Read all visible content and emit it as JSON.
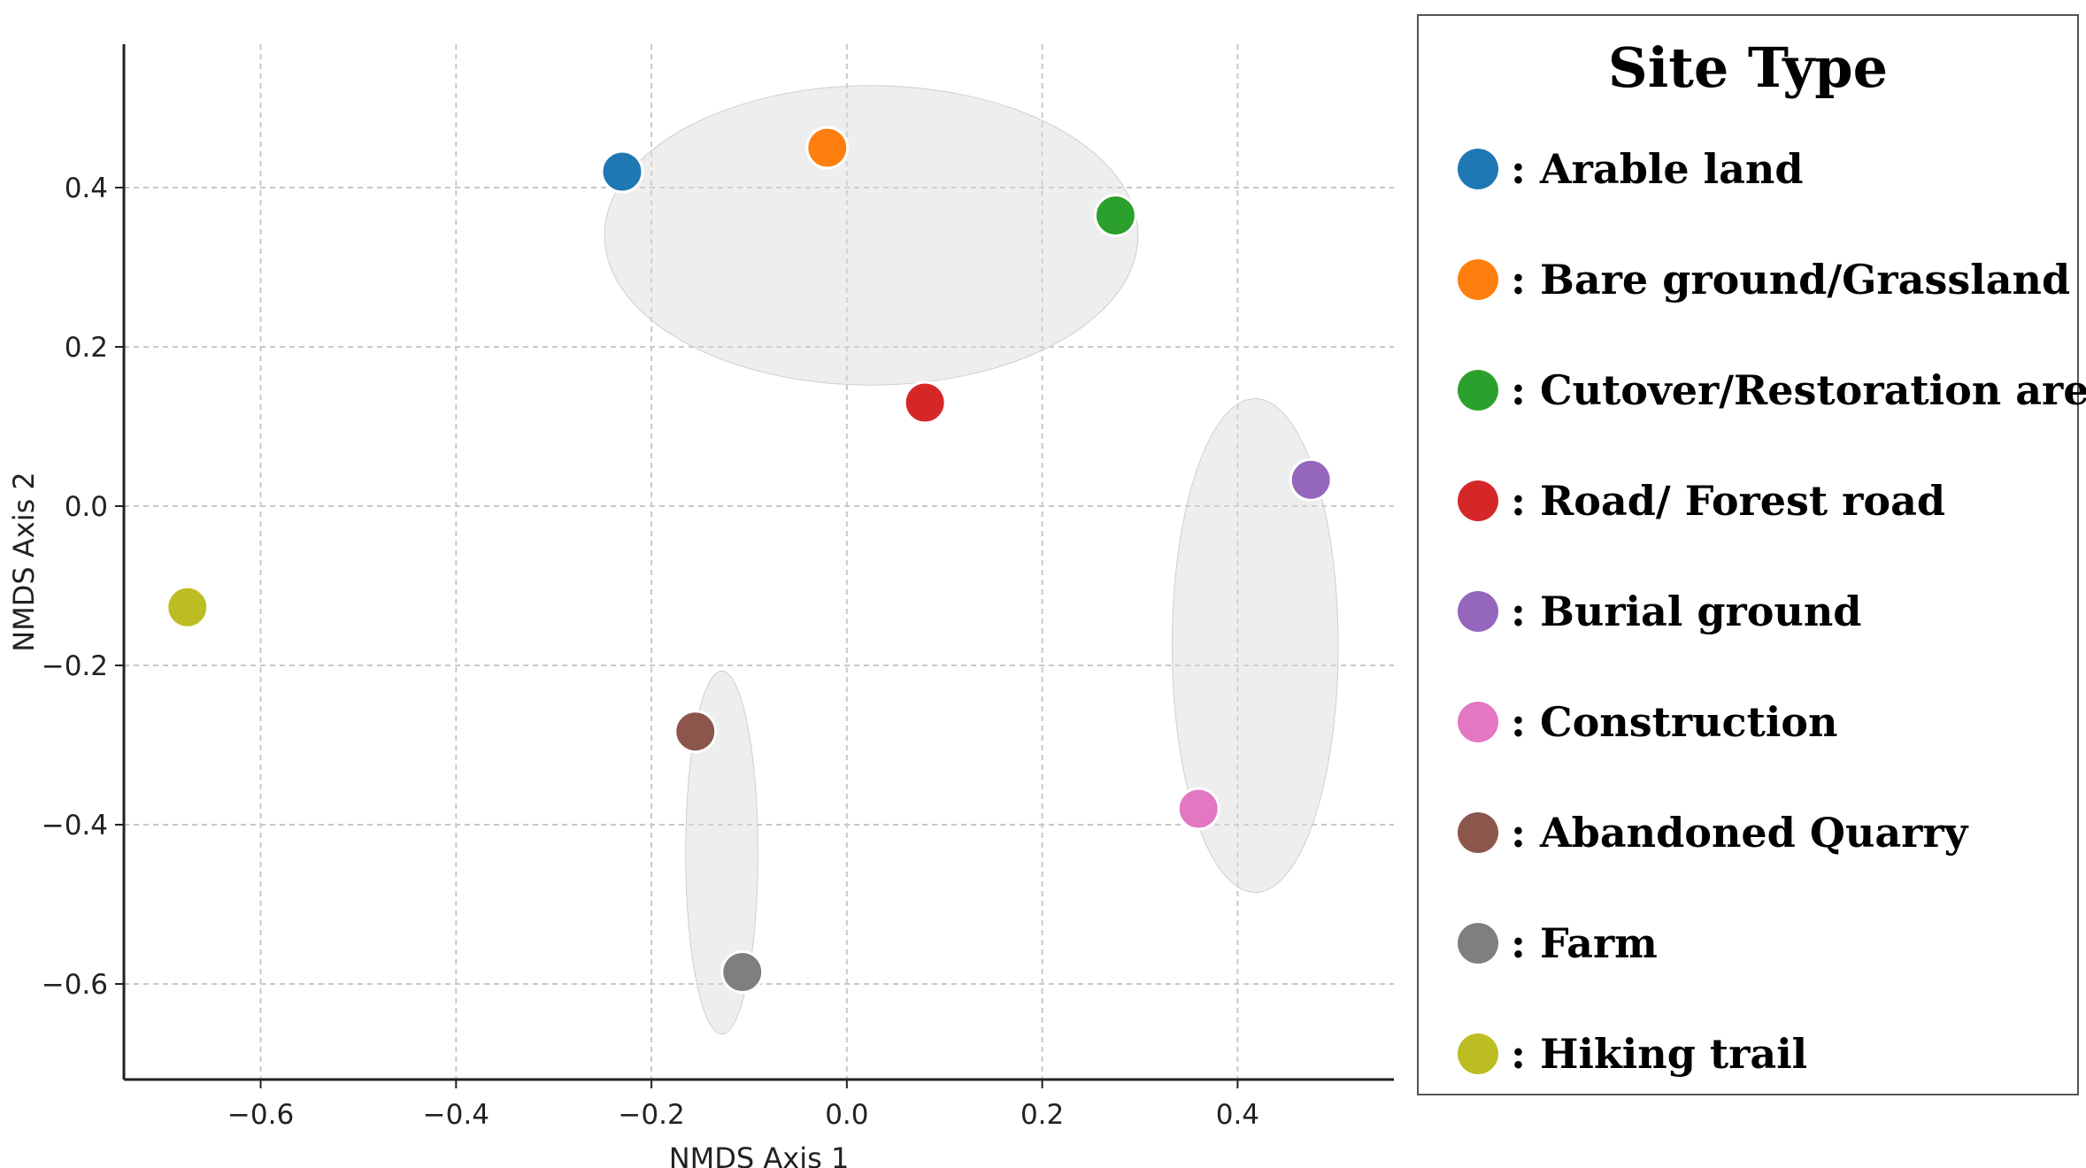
{
  "chart_data": {
    "type": "scatter",
    "title": "",
    "xlabel": "NMDS Axis 1",
    "ylabel": "NMDS Axis 2",
    "xlim": [
      -0.74,
      0.56
    ],
    "ylim": [
      -0.72,
      0.58
    ],
    "grid": true,
    "xticks": [
      -0.6,
      -0.4,
      -0.2,
      0.0,
      0.2,
      0.4
    ],
    "xtick_labels": [
      "−0.6",
      "−0.4",
      "−0.2",
      "0.0",
      "0.2",
      "0.4"
    ],
    "yticks": [
      -0.6,
      -0.4,
      -0.2,
      0.0,
      0.2,
      0.4
    ],
    "ytick_labels": [
      "−0.6",
      "−0.4",
      "−0.2",
      "0.0",
      "0.2",
      "0.4"
    ],
    "points": [
      {
        "name": "Arable land",
        "x": -0.23,
        "y": 0.42,
        "color": "#1f77b4"
      },
      {
        "name": "Bare ground/Grassland",
        "x": -0.02,
        "y": 0.45,
        "color": "#ff7f0e"
      },
      {
        "name": "Cutover/Restoration area",
        "x": 0.275,
        "y": 0.365,
        "color": "#2ca02c"
      },
      {
        "name": "Road/ Forest road",
        "x": 0.08,
        "y": 0.13,
        "color": "#d62728"
      },
      {
        "name": "Burial ground",
        "x": 0.475,
        "y": 0.033,
        "color": "#9467bd"
      },
      {
        "name": "Construction",
        "x": 0.36,
        "y": -0.38,
        "color": "#e377c2"
      },
      {
        "name": "Abandoned Quarry",
        "x": -0.155,
        "y": -0.283,
        "color": "#8c564b"
      },
      {
        "name": "Farm",
        "x": -0.107,
        "y": -0.585,
        "color": "#7f7f7f"
      },
      {
        "name": "Hiking trail",
        "x": -0.675,
        "y": -0.127,
        "color": "#bcbd22"
      }
    ],
    "ellipses": [
      {
        "cx": 0.025,
        "cy": 0.34,
        "rx": 0.273,
        "ry": 0.188
      },
      {
        "cx": 0.418,
        "cy": -0.175,
        "rx": 0.085,
        "ry": 0.31
      },
      {
        "cx": -0.128,
        "cy": -0.435,
        "rx": 0.037,
        "ry": 0.228
      }
    ],
    "legend": {
      "title": "Site Type",
      "placement": "right",
      "entries": [
        {
          "label": ": Arable land",
          "color": "#1f77b4"
        },
        {
          "label": ": Bare ground/Grassland",
          "color": "#ff7f0e"
        },
        {
          "label": ": Cutover/Restoration  area",
          "color": "#2ca02c"
        },
        {
          "label": ": Road/ Forest road",
          "color": "#d62728"
        },
        {
          "label": ": Burial ground",
          "color": "#9467bd"
        },
        {
          "label": ": Construction",
          "color": "#e377c2"
        },
        {
          "label": ": Abandoned Quarry",
          "color": "#8c564b"
        },
        {
          "label": ": Farm",
          "color": "#7f7f7f"
        },
        {
          "label": ": Hiking trail",
          "color": "#bcbd22"
        }
      ]
    }
  }
}
